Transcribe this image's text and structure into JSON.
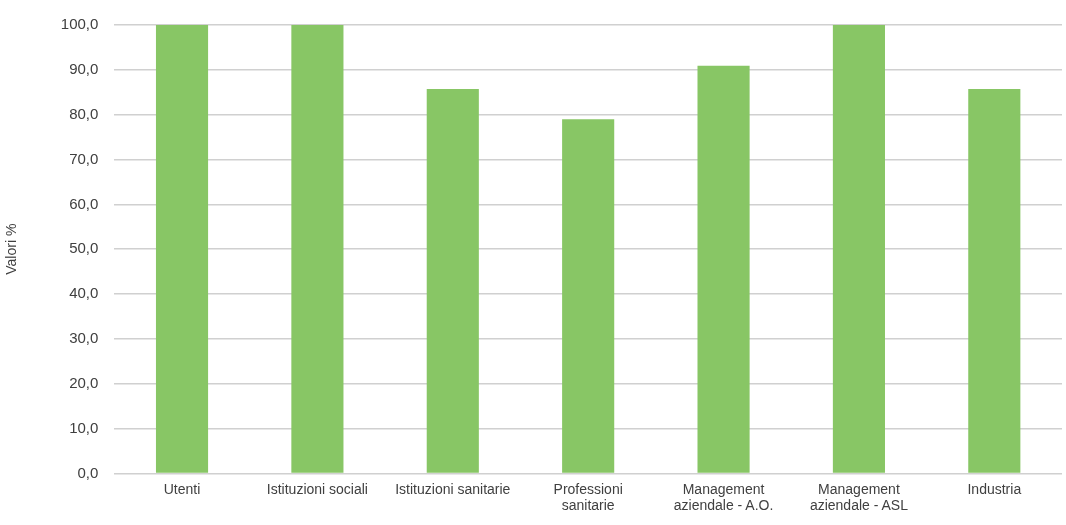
{
  "chart_data": {
    "type": "bar",
    "ylabel": "Valori %",
    "categories": [
      "Utenti",
      "Istituzioni sociali",
      "Istituzioni sanitarie",
      "Professioni\nsanitarie",
      "Management\naziendale - A.O.",
      "Management\naziendale - ASL",
      "Industria"
    ],
    "values": [
      100,
      100,
      85.7,
      79,
      90.9,
      100,
      85.7
    ],
    "color": "#88c665",
    "ylim": [
      0,
      100
    ],
    "yticks": [
      {
        "value": 0,
        "label": "0,0"
      },
      {
        "value": 10,
        "label": "10,0"
      },
      {
        "value": 20,
        "label": "20,0"
      },
      {
        "value": 30,
        "label": "30,0"
      },
      {
        "value": 40,
        "label": "40,0"
      },
      {
        "value": 50,
        "label": "50,0"
      },
      {
        "value": 60,
        "label": "60,0"
      },
      {
        "value": 70,
        "label": "70,0"
      },
      {
        "value": 80,
        "label": "80,0"
      },
      {
        "value": 90,
        "label": "90,0"
      },
      {
        "value": 100,
        "label": "100,0"
      }
    ],
    "grid": "y"
  }
}
